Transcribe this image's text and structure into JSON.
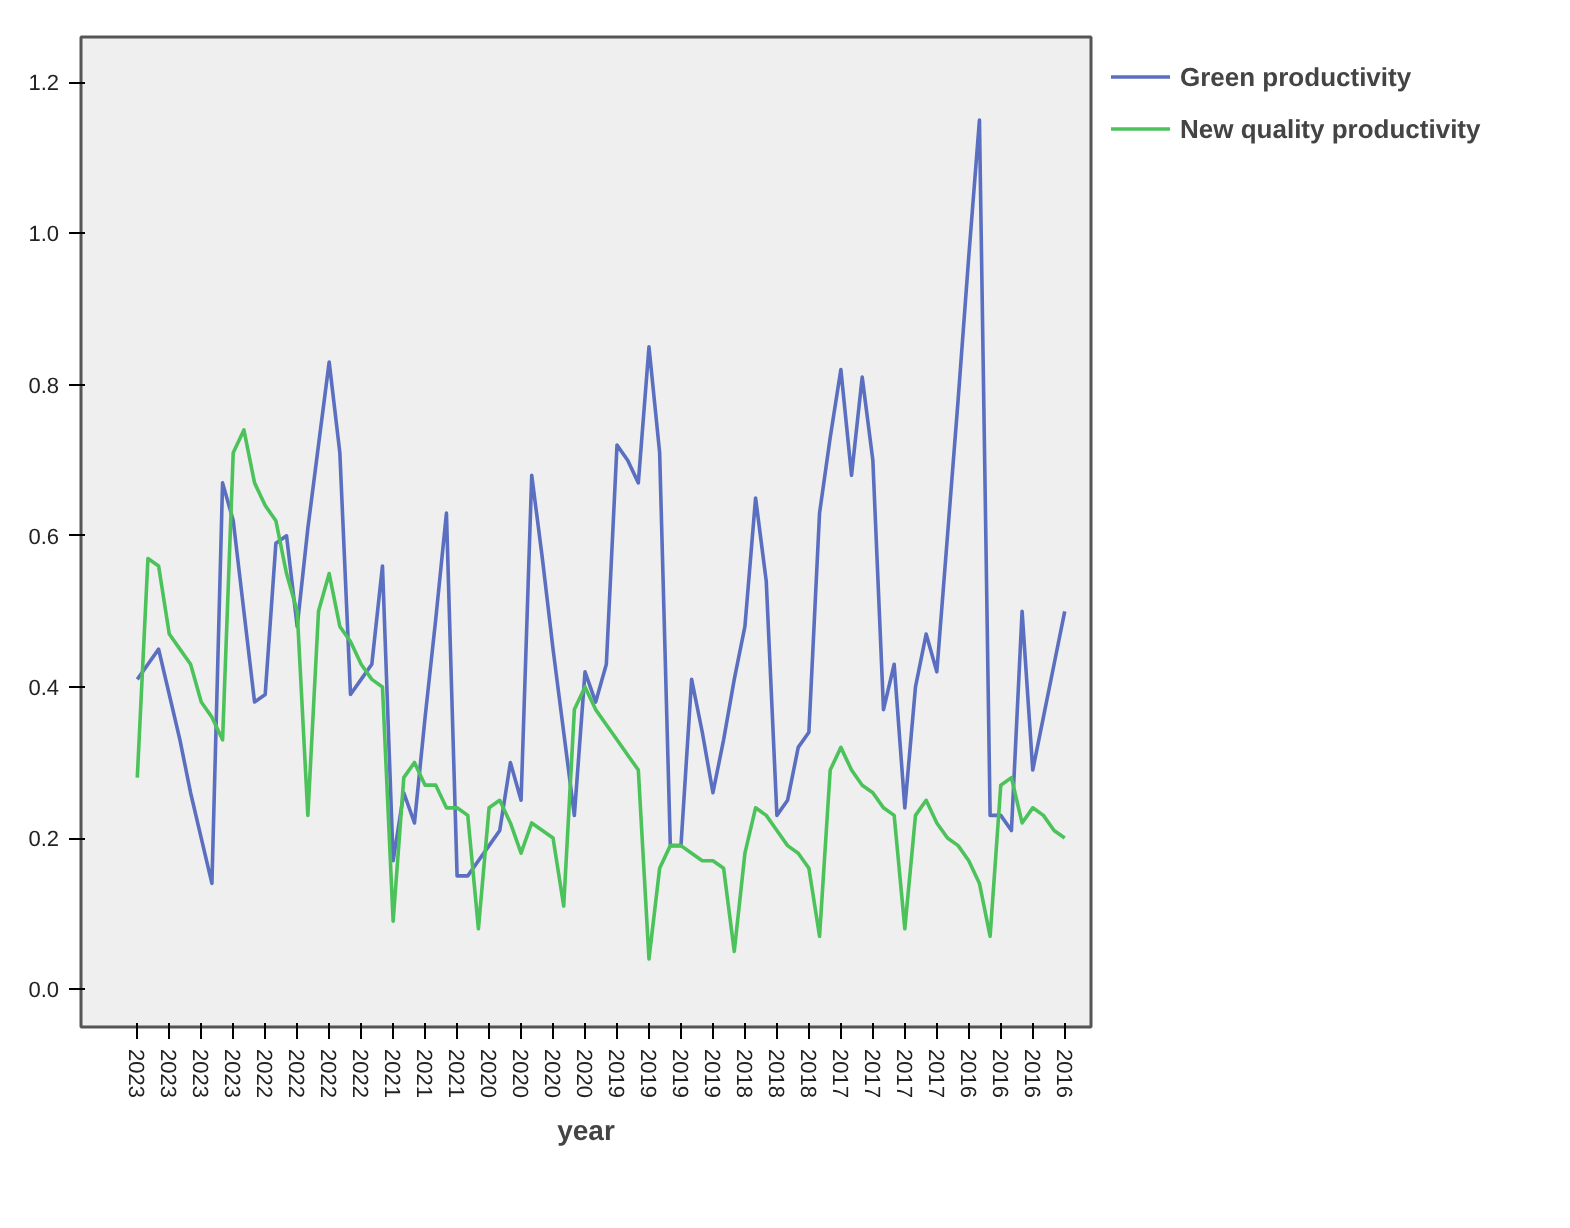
{
  "chart_data": {
    "type": "line",
    "xlabel": "year",
    "categories": [
      "2023",
      null,
      null,
      "2023",
      null,
      null,
      "2023",
      null,
      null,
      "2023",
      null,
      null,
      "2022",
      null,
      null,
      "2022",
      null,
      null,
      "2022",
      null,
      null,
      "2022",
      null,
      null,
      "2021",
      null,
      null,
      "2021",
      null,
      null,
      "2021",
      null,
      null,
      "2020",
      null,
      null,
      "2020",
      null,
      null,
      "2020",
      null,
      null,
      "2020",
      null,
      null,
      "2019",
      null,
      null,
      "2019",
      null,
      null,
      "2019",
      null,
      null,
      "2019",
      null,
      null,
      "2018",
      null,
      null,
      "2018",
      null,
      null,
      "2018",
      null,
      null,
      "2017",
      null,
      null,
      "2017",
      null,
      null,
      "2017",
      null,
      null,
      "2017",
      null,
      null,
      "2016",
      null,
      null,
      "2016",
      null,
      null,
      "2016",
      null,
      null,
      "2016"
    ],
    "series": [
      {
        "name": "Green productivity",
        "color": "#5b6fc0",
        "values": [
          0.41,
          0.43,
          0.45,
          0.39,
          0.33,
          0.26,
          0.2,
          0.14,
          0.67,
          0.62,
          0.5,
          0.38,
          0.39,
          0.59,
          0.6,
          0.48,
          0.61,
          0.72,
          0.83,
          0.71,
          0.39,
          0.41,
          0.43,
          0.56,
          0.17,
          0.26,
          0.22,
          0.36,
          0.49,
          0.63,
          0.15,
          0.15,
          0.17,
          0.19,
          0.21,
          0.3,
          0.25,
          0.68,
          0.57,
          0.45,
          0.34,
          0.23,
          0.42,
          0.38,
          0.43,
          0.72,
          0.7,
          0.67,
          0.85,
          0.71,
          0.19,
          0.19,
          0.41,
          0.34,
          0.26,
          0.33,
          0.41,
          0.48,
          0.65,
          0.54,
          0.23,
          0.25,
          0.32,
          0.34,
          0.63,
          0.73,
          0.82,
          0.68,
          0.81,
          0.7,
          0.37,
          0.43,
          0.24,
          0.4,
          0.47,
          0.42,
          0.6,
          0.78,
          0.97,
          1.15,
          0.23,
          0.23,
          0.21,
          0.5,
          0.29,
          0.36,
          0.43,
          0.5
        ]
      },
      {
        "name": "New quality productivity",
        "color": "#4cc25a",
        "values": [
          0.28,
          0.57,
          0.56,
          0.47,
          0.45,
          0.43,
          0.38,
          0.36,
          0.33,
          0.71,
          0.74,
          0.67,
          0.64,
          0.62,
          0.55,
          0.5,
          0.23,
          0.5,
          0.55,
          0.48,
          0.46,
          0.43,
          0.41,
          0.4,
          0.09,
          0.28,
          0.3,
          0.27,
          0.27,
          0.24,
          0.24,
          0.23,
          0.08,
          0.24,
          0.25,
          0.22,
          0.18,
          0.22,
          0.21,
          0.2,
          0.11,
          0.37,
          0.4,
          0.37,
          0.35,
          0.33,
          0.31,
          0.29,
          0.04,
          0.16,
          0.19,
          0.19,
          0.18,
          0.17,
          0.17,
          0.16,
          0.05,
          0.18,
          0.24,
          0.23,
          0.21,
          0.19,
          0.18,
          0.16,
          0.07,
          0.29,
          0.32,
          0.29,
          0.27,
          0.26,
          0.24,
          0.23,
          0.08,
          0.23,
          0.25,
          0.22,
          0.2,
          0.19,
          0.17,
          0.14,
          0.07,
          0.27,
          0.28,
          0.22,
          0.24,
          0.23,
          0.21,
          0.2
        ]
      }
    ],
    "ylim": [
      -0.05,
      1.26
    ],
    "yticks": [
      {
        "value": 0.0,
        "label": "0.0"
      },
      {
        "value": 0.2,
        "label": "0.2"
      },
      {
        "value": 0.4,
        "label": "0.4"
      },
      {
        "value": 0.6,
        "label": "0.6"
      },
      {
        "value": 0.8,
        "label": "0.8"
      },
      {
        "value": 1.0,
        "label": "1.0"
      },
      {
        "value": 1.2,
        "label": "1.2"
      }
    ],
    "grid": false,
    "legend": "top right",
    "marker": "none",
    "line_style": "solid"
  }
}
